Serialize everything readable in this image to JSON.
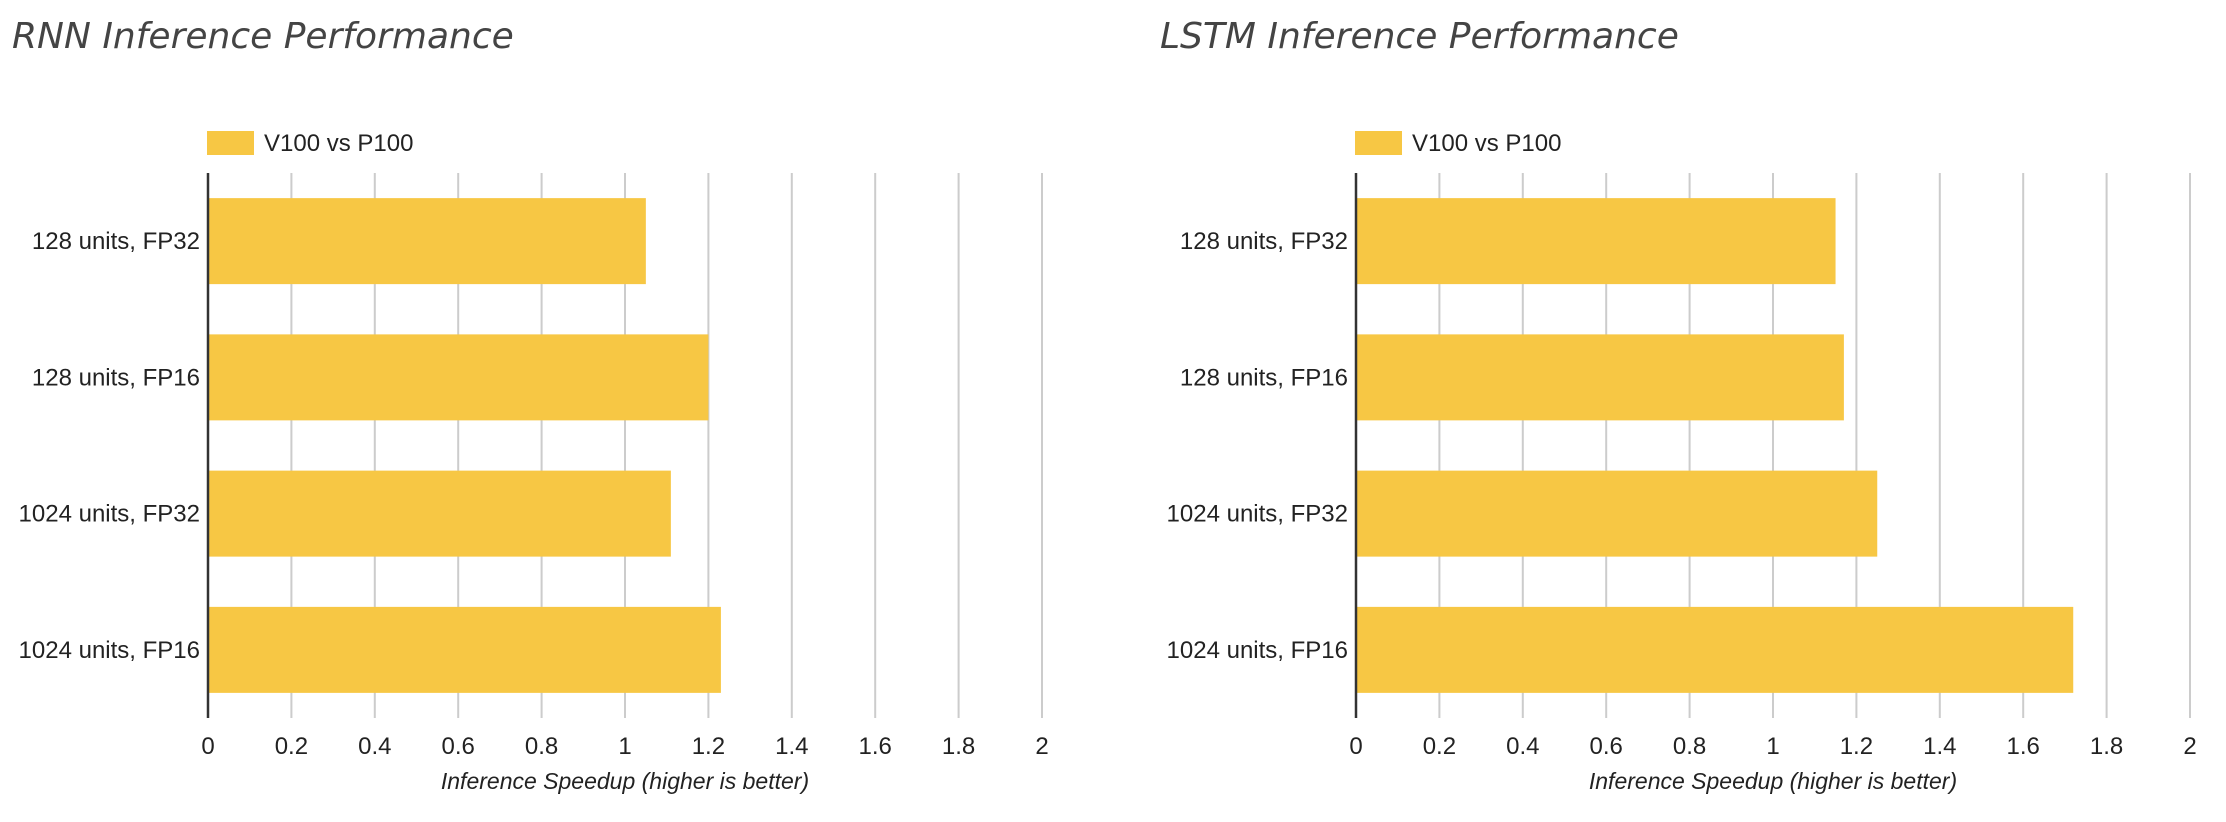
{
  "colors": {
    "bar": "#f7c744",
    "grid": "#cccccc",
    "axis": "#333333",
    "title": "#444444"
  },
  "chart_data": [
    {
      "type": "bar",
      "orientation": "horizontal",
      "title": "RNN Inference Performance",
      "xlabel": "Inference Speedup (higher is better)",
      "ylabel": "",
      "categories": [
        "128 units, FP32",
        "128 units, FP16",
        "1024 units, FP32",
        "1024 units, FP16"
      ],
      "series": [
        {
          "name": "V100 vs P100",
          "values": [
            1.05,
            1.2,
            1.11,
            1.23
          ]
        }
      ],
      "xlim": [
        0,
        2
      ],
      "ticks": [
        "0",
        "0.2",
        "0.4",
        "0.6",
        "0.8",
        "1",
        "1.2",
        "1.4",
        "1.6",
        "1.8",
        "2"
      ],
      "grid": true,
      "legend": "top-left"
    },
    {
      "type": "bar",
      "orientation": "horizontal",
      "title": "LSTM Inference Performance",
      "xlabel": "Inference Speedup (higher is better)",
      "ylabel": "",
      "categories": [
        "128 units, FP32",
        "128 units, FP16",
        "1024 units, FP32",
        "1024 units, FP16"
      ],
      "series": [
        {
          "name": "V100 vs P100",
          "values": [
            1.15,
            1.17,
            1.25,
            1.72
          ]
        }
      ],
      "xlim": [
        0,
        2
      ],
      "ticks": [
        "0",
        "0.2",
        "0.4",
        "0.6",
        "0.8",
        "1",
        "1.2",
        "1.4",
        "1.6",
        "1.8",
        "2"
      ],
      "grid": true,
      "legend": "top-left"
    }
  ]
}
